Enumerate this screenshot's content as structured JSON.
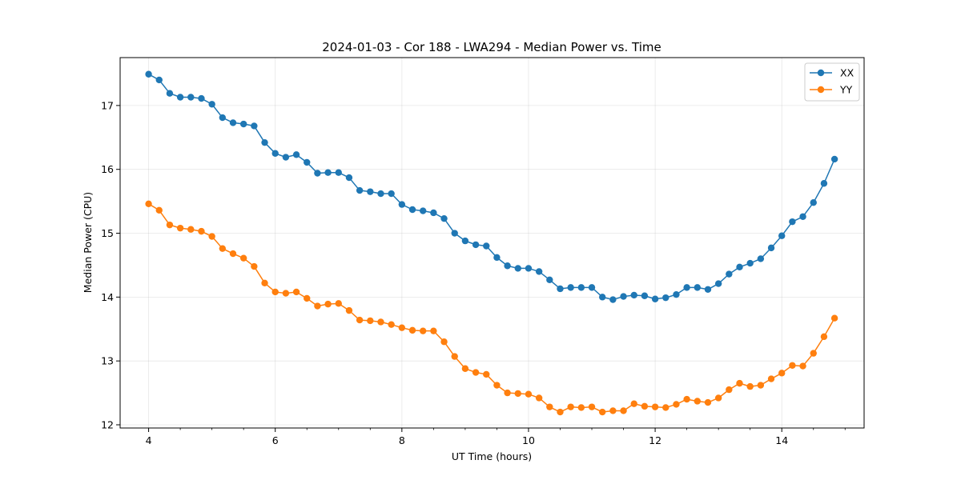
{
  "chart_data": {
    "type": "line",
    "title": "2024-01-03 - Cor 188 - LWA294 - Median Power vs. Time",
    "xlabel": "UT Time (hours)",
    "ylabel": "Median Power (CPU)",
    "xlim": [
      3.55,
      15.3
    ],
    "ylim": [
      11.95,
      17.75
    ],
    "xticks": [
      4,
      6,
      8,
      10,
      12,
      14
    ],
    "xticklabels": [
      "4",
      "6",
      "8",
      "10",
      "12",
      "14"
    ],
    "xminorticks": [
      3.5,
      4.5,
      5,
      5.5,
      6.5,
      7,
      7.5,
      8.5,
      9,
      9.5,
      10.5,
      11,
      11.5,
      12.5,
      13,
      13.5,
      14.5,
      15
    ],
    "yticks": [
      12,
      13,
      14,
      15,
      16,
      17
    ],
    "yticklabels": [
      "12",
      "13",
      "14",
      "15",
      "16",
      "17"
    ],
    "grid": true,
    "legend_position": "top-right",
    "x": [
      4.0,
      4.1667,
      4.3333,
      4.5,
      4.6667,
      4.8333,
      5.0,
      5.1667,
      5.3333,
      5.5,
      5.6667,
      5.8333,
      6.0,
      6.1667,
      6.3333,
      6.5,
      6.6667,
      6.8333,
      7.0,
      7.1667,
      7.3333,
      7.5,
      7.6667,
      7.8333,
      8.0,
      8.1667,
      8.3333,
      8.5,
      8.6667,
      8.8333,
      9.0,
      9.1667,
      9.3333,
      9.5,
      9.6667,
      9.8333,
      10.0,
      10.1667,
      10.3333,
      10.5,
      10.6667,
      10.8333,
      11.0,
      11.1667,
      11.3333,
      11.5,
      11.6667,
      11.8333,
      12.0,
      12.1667,
      12.3333,
      12.5,
      12.6667,
      12.8333,
      13.0,
      13.1667,
      13.3333,
      13.5,
      13.6667,
      13.8333,
      14.0,
      14.1667,
      14.3333,
      14.5,
      14.6667,
      14.8333
    ],
    "series": [
      {
        "name": "XX",
        "color": "#1f77b4",
        "values": [
          17.49,
          17.4,
          17.19,
          17.13,
          17.13,
          17.11,
          17.02,
          16.81,
          16.73,
          16.71,
          16.68,
          16.42,
          16.25,
          16.19,
          16.23,
          16.11,
          15.94,
          15.95,
          15.95,
          15.87,
          15.67,
          15.65,
          15.62,
          15.62,
          15.45,
          15.37,
          15.35,
          15.32,
          15.23,
          15.0,
          14.88,
          14.82,
          14.8,
          14.62,
          14.49,
          14.45,
          14.45,
          14.4,
          14.27,
          14.13,
          14.15,
          14.15,
          14.15,
          14.0,
          13.96,
          14.01,
          14.03,
          14.02,
          13.97,
          13.99,
          14.04,
          14.15,
          14.15,
          14.12,
          14.21,
          14.36,
          14.47,
          14.53,
          14.6,
          14.77,
          14.96,
          15.18,
          15.26,
          15.48,
          15.78,
          16.16
        ]
      },
      {
        "name": "YY",
        "color": "#ff7f0e",
        "values": [
          15.46,
          15.36,
          15.13,
          15.08,
          15.06,
          15.03,
          14.95,
          14.76,
          14.68,
          14.61,
          14.48,
          14.22,
          14.08,
          14.06,
          14.08,
          13.98,
          13.86,
          13.89,
          13.9,
          13.79,
          13.64,
          13.63,
          13.61,
          13.57,
          13.52,
          13.48,
          13.47,
          13.47,
          13.3,
          13.07,
          12.88,
          12.82,
          12.79,
          12.62,
          12.5,
          12.49,
          12.48,
          12.42,
          12.28,
          12.2,
          12.28,
          12.27,
          12.28,
          12.2,
          12.22,
          12.22,
          12.33,
          12.29,
          12.28,
          12.27,
          12.32,
          12.4,
          12.37,
          12.35,
          12.42,
          12.55,
          12.65,
          12.6,
          12.62,
          12.72,
          12.81,
          12.93,
          12.92,
          13.12,
          13.38,
          13.67
        ]
      }
    ]
  }
}
